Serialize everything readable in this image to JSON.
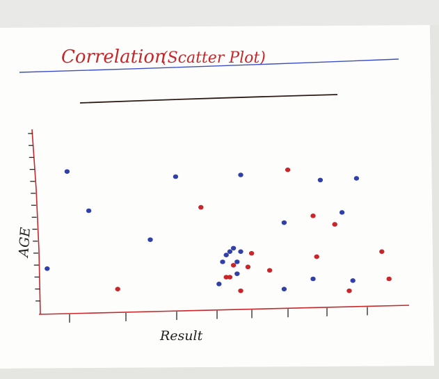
{
  "header": {
    "title": "Correlation",
    "subtitle": "(Scatter Plot)"
  },
  "chart_data": {
    "type": "scatter",
    "title": "",
    "xlabel": "Result",
    "ylabel": "AGE",
    "xlim": [
      0,
      100
    ],
    "ylim": [
      0,
      100
    ],
    "grid": false,
    "legend": "none",
    "colors": {
      "axis": "#c7262b",
      "blue": "#3140a8",
      "red": "#c7262b",
      "title_rule": "#3c4ec2",
      "blank_line": "#2b1a16"
    },
    "series": [
      {
        "color": "blue",
        "points": [
          [
            1.5,
            26
          ],
          [
            7,
            83
          ],
          [
            13,
            60
          ],
          [
            30,
            43
          ],
          [
            37,
            80
          ],
          [
            55,
            81
          ],
          [
            49,
            17
          ],
          [
            50,
            30
          ],
          [
            51,
            34
          ],
          [
            52,
            36
          ],
          [
            53,
            38
          ],
          [
            54,
            30
          ],
          [
            54,
            23
          ],
          [
            55,
            36
          ],
          [
            67,
            53
          ],
          [
            67,
            14
          ],
          [
            75,
            20
          ],
          [
            77,
            78
          ],
          [
            83,
            59
          ],
          [
            87,
            79
          ],
          [
            86,
            19
          ]
        ]
      },
      {
        "color": "red",
        "points": [
          [
            21,
            14
          ],
          [
            44,
            62
          ],
          [
            51,
            21
          ],
          [
            52,
            21
          ],
          [
            53,
            28
          ],
          [
            55,
            13
          ],
          [
            57,
            27
          ],
          [
            58,
            35
          ],
          [
            63,
            25
          ],
          [
            68,
            84
          ],
          [
            75,
            57
          ],
          [
            76,
            33
          ],
          [
            81,
            52
          ],
          [
            85,
            13
          ],
          [
            94,
            36
          ],
          [
            96,
            20
          ]
        ]
      }
    ]
  }
}
